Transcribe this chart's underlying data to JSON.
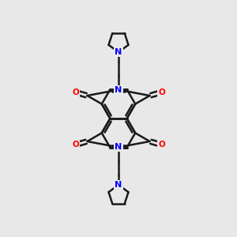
{
  "background_color": "#e8e8e8",
  "bond_color": "#1a1a1a",
  "nitrogen_color": "#0000ff",
  "oxygen_color": "#ff0000",
  "line_width": 1.8,
  "figsize": [
    3.0,
    3.0
  ],
  "dpi": 100,
  "xlim": [
    -2.5,
    2.5
  ],
  "ylim": [
    -5.0,
    5.0
  ]
}
